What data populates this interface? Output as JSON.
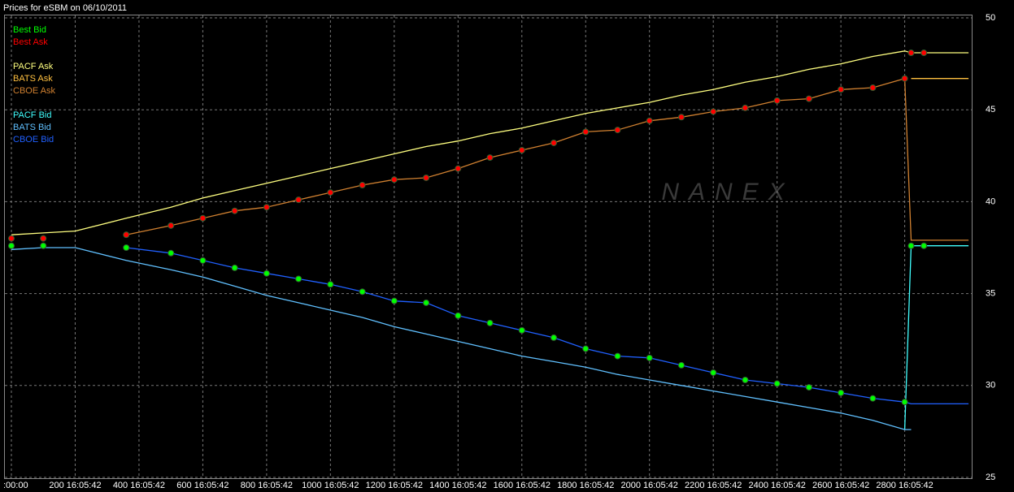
{
  "chart_data": {
    "type": "line",
    "title": "Prices for  eSBM  on  06/10/2011",
    "watermark": "NANEX",
    "x": [
      0,
      100,
      200,
      360,
      500,
      600,
      700,
      800,
      900,
      1000,
      1100,
      1200,
      1300,
      1400,
      1500,
      1600,
      1700,
      1800,
      1900,
      2000,
      2100,
      2200,
      2300,
      2400,
      2500,
      2600,
      2700,
      2800,
      2820,
      2860,
      3000
    ],
    "xlim": [
      0,
      3010
    ],
    "xticks": [
      {
        "value": 0,
        "label": ":00:00"
      },
      {
        "value": 200,
        "label": "200 16:05:42"
      },
      {
        "value": 400,
        "label": "400 16:05:42"
      },
      {
        "value": 600,
        "label": "600 16:05:42"
      },
      {
        "value": 800,
        "label": "800 16:05:42"
      },
      {
        "value": 1000,
        "label": "1000 16:05:42"
      },
      {
        "value": 1200,
        "label": "1200 16:05:42"
      },
      {
        "value": 1400,
        "label": "1400 16:05:42"
      },
      {
        "value": 1600,
        "label": "1600 16:05:42"
      },
      {
        "value": 1800,
        "label": "1800 16:05:42"
      },
      {
        "value": 2000,
        "label": "2000 16:05:42"
      },
      {
        "value": 2200,
        "label": "2200 16:05:42"
      },
      {
        "value": 2400,
        "label": "2400 16:05:42"
      },
      {
        "value": 2600,
        "label": "2600 16:05:42"
      },
      {
        "value": 2800,
        "label": "2800 16:05:42"
      }
    ],
    "ylim": [
      25,
      50
    ],
    "yticks": [
      25,
      30,
      35,
      40,
      45,
      50
    ],
    "grid": true,
    "series": [
      {
        "name": "Best Bid",
        "color": "#00ff00",
        "marker": true,
        "values": [
          37.6,
          37.6,
          null,
          37.5,
          37.2,
          36.8,
          36.4,
          36.1,
          35.8,
          35.5,
          35.1,
          34.6,
          34.5,
          33.8,
          33.4,
          33.0,
          32.6,
          32.0,
          31.6,
          31.5,
          31.1,
          30.7,
          30.3,
          30.1,
          29.9,
          29.6,
          29.3,
          29.1,
          37.6,
          37.6,
          null
        ]
      },
      {
        "name": "Best Ask",
        "color": "#ff0000",
        "marker": true,
        "values": [
          38.0,
          38.0,
          null,
          38.2,
          38.7,
          39.1,
          39.5,
          39.7,
          40.1,
          40.5,
          40.9,
          41.2,
          41.3,
          41.8,
          42.4,
          42.8,
          43.2,
          43.8,
          43.9,
          44.4,
          44.6,
          44.9,
          45.1,
          45.5,
          45.6,
          46.1,
          46.2,
          46.7,
          48.1,
          48.1,
          null
        ]
      },
      {
        "name": "PACF Ask",
        "color": "#ffff80",
        "values": [
          38.2,
          38.3,
          38.4,
          39.1,
          39.7,
          40.2,
          40.6,
          41.0,
          41.4,
          41.8,
          42.2,
          42.6,
          43.0,
          43.3,
          43.7,
          44.0,
          44.4,
          44.8,
          45.1,
          45.4,
          45.8,
          46.1,
          46.5,
          46.8,
          47.2,
          47.5,
          47.9,
          48.2,
          48.1,
          48.1,
          48.1
        ]
      },
      {
        "name": "BATS Ask",
        "color": "#ffc040",
        "values": [
          null,
          null,
          null,
          null,
          null,
          null,
          null,
          null,
          null,
          null,
          null,
          null,
          null,
          null,
          null,
          null,
          null,
          null,
          null,
          null,
          null,
          null,
          null,
          null,
          null,
          null,
          null,
          null,
          46.7,
          46.7,
          46.7
        ]
      },
      {
        "name": "CBOE Ask",
        "color": "#d08030",
        "values": [
          null,
          null,
          null,
          38.2,
          38.7,
          39.1,
          39.5,
          39.7,
          40.1,
          40.5,
          40.9,
          41.2,
          41.3,
          41.8,
          42.4,
          42.8,
          43.2,
          43.8,
          43.9,
          44.4,
          44.6,
          44.9,
          45.1,
          45.5,
          45.6,
          46.1,
          46.2,
          46.7,
          37.9,
          37.9,
          37.9
        ]
      },
      {
        "name": "PACF Bid",
        "color": "#40ffff",
        "values": [
          null,
          null,
          null,
          null,
          null,
          null,
          null,
          null,
          null,
          null,
          null,
          null,
          null,
          null,
          null,
          null,
          null,
          null,
          null,
          null,
          null,
          null,
          null,
          null,
          null,
          null,
          null,
          27.6,
          37.6,
          37.6,
          37.6
        ]
      },
      {
        "name": "BATS Bid",
        "color": "#60c0ff",
        "values": [
          37.4,
          37.5,
          37.5,
          36.8,
          36.3,
          35.9,
          35.4,
          34.9,
          34.5,
          34.1,
          33.7,
          33.2,
          32.8,
          32.4,
          32.0,
          31.6,
          31.3,
          31.0,
          30.6,
          30.3,
          30.0,
          29.7,
          29.4,
          29.1,
          28.8,
          28.5,
          28.1,
          27.6,
          27.6,
          null,
          null
        ]
      },
      {
        "name": "CBOE Bid",
        "color": "#2060ff",
        "values": [
          null,
          null,
          null,
          37.5,
          37.2,
          36.8,
          36.4,
          36.1,
          35.8,
          35.5,
          35.1,
          34.6,
          34.5,
          33.8,
          33.4,
          33.0,
          32.6,
          32.0,
          31.6,
          31.5,
          31.1,
          30.7,
          30.3,
          30.1,
          29.9,
          29.6,
          29.3,
          29.1,
          29.0,
          29.0,
          29.0
        ]
      }
    ]
  }
}
